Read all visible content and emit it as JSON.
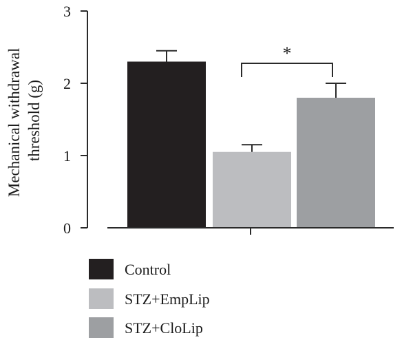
{
  "chart_data": {
    "type": "bar",
    "categories": [
      "Control",
      "STZ+EmpLip",
      "STZ+CloLip"
    ],
    "values": [
      2.3,
      1.05,
      1.8
    ],
    "errors": [
      0.15,
      0.1,
      0.2
    ],
    "colors": [
      "#231f20",
      "#bcbdc0",
      "#9d9fa2"
    ],
    "ylabel_lines": [
      "Mechanical withdrawal",
      "threshold (g)"
    ],
    "ylim": [
      0,
      3
    ],
    "yticks": [
      "0",
      "1",
      "2",
      "3"
    ],
    "significance": {
      "between": [
        "STZ+EmpLip",
        "STZ+CloLip"
      ],
      "label": "*"
    },
    "legend": [
      "Control",
      "STZ+EmpLip",
      "STZ+CloLip"
    ],
    "legend_position": "bottom-left",
    "grid": false
  }
}
